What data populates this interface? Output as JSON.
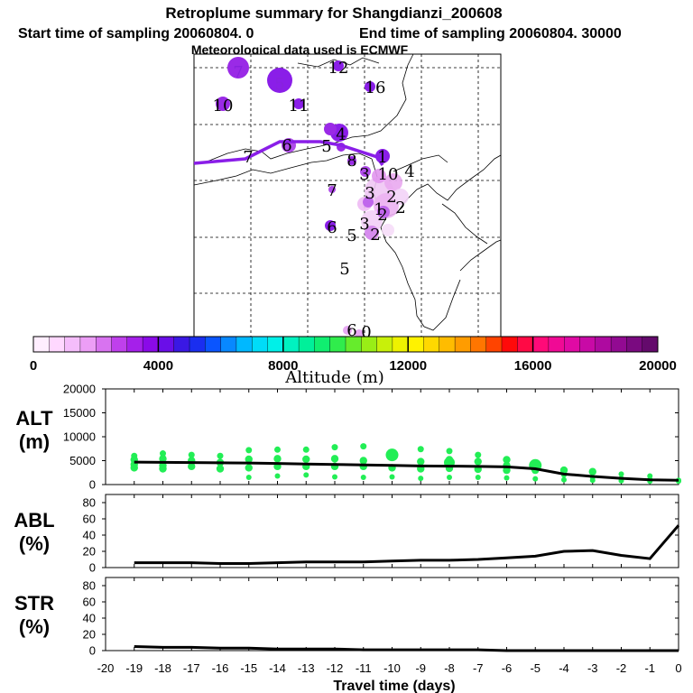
{
  "title": {
    "line1": "Retroplume summary for Shangdianzi_200608",
    "line2a": "Start time of sampling 20060804.    0",
    "line2b": "End time of sampling 20060804. 30000",
    "line3": "Meteorological data used is ECMWF"
  },
  "map": {
    "track_color": "#8a1ee8",
    "labels": [
      {
        "t": "7",
        "c": "#8822dd"
      },
      {
        "t": "5",
        "c": "#8822dd"
      },
      {
        "t": "12",
        "c": "#000000"
      },
      {
        "t": "16",
        "c": "#000000"
      },
      {
        "t": "10",
        "c": "#000000"
      },
      {
        "t": "11",
        "c": "#000000"
      },
      {
        "t": "7",
        "c": "#000000"
      },
      {
        "t": "6",
        "c": "#000000"
      },
      {
        "t": "5",
        "c": "#000000"
      },
      {
        "t": "4",
        "c": "#000000"
      },
      {
        "t": "8",
        "c": "#000000"
      },
      {
        "t": "1",
        "c": "#000000"
      },
      {
        "t": "3",
        "c": "#000000"
      },
      {
        "t": "10",
        "c": "#000000"
      },
      {
        "t": "4",
        "c": "#000000"
      },
      {
        "t": "3",
        "c": "#000000"
      },
      {
        "t": "2",
        "c": "#000000"
      },
      {
        "t": "1",
        "c": "#000000"
      },
      {
        "t": "2",
        "c": "#000000"
      },
      {
        "t": "7",
        "c": "#000000"
      },
      {
        "t": "6",
        "c": "#000000"
      },
      {
        "t": "5",
        "c": "#000000"
      },
      {
        "t": "3",
        "c": "#000000"
      },
      {
        "t": "2",
        "c": "#000000"
      },
      {
        "t": "2",
        "c": "#000000"
      },
      {
        "t": "5",
        "c": "#000000"
      },
      {
        "t": "6",
        "c": "#000000"
      },
      {
        "t": "0",
        "c": "#000000"
      }
    ]
  },
  "colorbar": {
    "title": "Altitude (m)",
    "ticks": [
      "0",
      "4000",
      "8000",
      "12000",
      "16000",
      "20000"
    ],
    "colors": [
      "#ffeeff",
      "#ffd8ff",
      "#f5bdfb",
      "#ec9ef6",
      "#d873f0",
      "#bf40ec",
      "#a520ea",
      "#8a0ae8",
      "#6a0ee8",
      "#3a18e4",
      "#1a2ef0",
      "#0a55ff",
      "#0888ff",
      "#00b8ff",
      "#00dcf8",
      "#00f0e8",
      "#00f2c0",
      "#00f09a",
      "#10ee70",
      "#30ec4c",
      "#66ec2c",
      "#99ee16",
      "#c8f00a",
      "#eef200",
      "#fff200",
      "#ffd800",
      "#ffbc00",
      "#ff9c00",
      "#ff7600",
      "#ff4400",
      "#ff0a0a",
      "#ff0a45",
      "#ff0a78",
      "#f00a95",
      "#e00aa4",
      "#c80aa6",
      "#ae0aa0",
      "#920a92",
      "#7a0a80",
      "#640a6c"
    ]
  },
  "chart_data": [
    {
      "type": "line",
      "name": "altitude",
      "ylabel": "ALT\n(m)",
      "ylabel_l1": "ALT",
      "ylabel_l2": "(m)",
      "ylim": [
        0,
        20000
      ],
      "yticks": [
        "0",
        "5000",
        "10000",
        "15000",
        "20000"
      ],
      "yticks_v": [
        0,
        5000,
        10000,
        15000,
        20000
      ],
      "x": [
        -19,
        -18,
        -17,
        -16,
        -15,
        -14,
        -13,
        -12,
        -11,
        -10,
        -9,
        -8,
        -7,
        -6,
        -5,
        -4,
        -3,
        -2,
        -1,
        0
      ],
      "values": [
        4700,
        4650,
        4600,
        4550,
        4500,
        4400,
        4300,
        4200,
        4100,
        4000,
        3900,
        3850,
        3800,
        3700,
        3300,
        2200,
        1700,
        1300,
        1000,
        900
      ],
      "scatter": {
        "color": "#22ee55",
        "points": [
          [
            -19,
            6000
          ],
          [
            -19,
            5200
          ],
          [
            -19,
            4200
          ],
          [
            -19,
            3500
          ],
          [
            -18,
            6500
          ],
          [
            -18,
            5400
          ],
          [
            -18,
            4000
          ],
          [
            -18,
            3300
          ],
          [
            -17,
            6200
          ],
          [
            -17,
            5000
          ],
          [
            -17,
            3800
          ],
          [
            -16,
            6000
          ],
          [
            -16,
            4600
          ],
          [
            -16,
            3300
          ],
          [
            -15,
            7200
          ],
          [
            -15,
            5300
          ],
          [
            -15,
            3500
          ],
          [
            -15,
            1500
          ],
          [
            -14,
            7300
          ],
          [
            -14,
            5400
          ],
          [
            -14,
            3800
          ],
          [
            -14,
            1800
          ],
          [
            -13,
            7300
          ],
          [
            -13,
            5300
          ],
          [
            -13,
            3800
          ],
          [
            -13,
            2000
          ],
          [
            -12,
            7800
          ],
          [
            -12,
            5400
          ],
          [
            -12,
            3800
          ],
          [
            -12,
            1600
          ],
          [
            -11,
            8000
          ],
          [
            -11,
            5000
          ],
          [
            -11,
            3800
          ],
          [
            -11,
            1500
          ],
          [
            -10,
            6200
          ],
          [
            -10,
            3500
          ],
          [
            -10,
            1600
          ],
          [
            -9,
            7400
          ],
          [
            -9,
            4800
          ],
          [
            -9,
            3300
          ],
          [
            -9,
            1300
          ],
          [
            -8,
            7000
          ],
          [
            -8,
            5200
          ],
          [
            -8,
            4600
          ],
          [
            -8,
            3400
          ],
          [
            -8,
            1500
          ],
          [
            -7,
            6200
          ],
          [
            -7,
            4800
          ],
          [
            -7,
            3200
          ],
          [
            -7,
            1500
          ],
          [
            -6,
            5200
          ],
          [
            -6,
            4000
          ],
          [
            -6,
            3000
          ],
          [
            -6,
            1400
          ],
          [
            -5,
            4000
          ],
          [
            -5,
            3000
          ],
          [
            -5,
            1200
          ],
          [
            -4,
            3000
          ],
          [
            -4,
            2000
          ],
          [
            -4,
            1000
          ],
          [
            -3,
            2700
          ],
          [
            -3,
            1500
          ],
          [
            -3,
            900
          ],
          [
            -2,
            2200
          ],
          [
            -2,
            1300
          ],
          [
            -2,
            800
          ],
          [
            -1,
            1800
          ],
          [
            -1,
            1100
          ],
          [
            -1,
            700
          ],
          [
            0,
            900
          ],
          [
            0,
            700
          ]
        ]
      }
    },
    {
      "type": "line",
      "name": "abl",
      "ylabel_l1": "ABL",
      "ylabel_l2": "(%)",
      "ylim": [
        0,
        90
      ],
      "yticks": [
        "0",
        "20",
        "40",
        "60",
        "80"
      ],
      "yticks_v": [
        0,
        20,
        40,
        60,
        80
      ],
      "x": [
        -19,
        -18,
        -17,
        -16,
        -15,
        -14,
        -13,
        -12,
        -11,
        -10,
        -9,
        -8,
        -7,
        -6,
        -5,
        -4,
        -3,
        -2,
        -1,
        0
      ],
      "values": [
        6,
        6,
        6,
        5,
        5,
        6,
        7,
        7,
        7,
        8,
        9,
        9,
        10,
        12,
        14,
        20,
        21,
        15,
        11,
        52
      ]
    },
    {
      "type": "line",
      "name": "str",
      "ylabel_l1": "STR",
      "ylabel_l2": "(%)",
      "ylim": [
        0,
        90
      ],
      "yticks": [
        "0",
        "20",
        "40",
        "60",
        "80"
      ],
      "yticks_v": [
        0,
        20,
        40,
        60,
        80
      ],
      "x": [
        -19,
        -18,
        -17,
        -16,
        -15,
        -14,
        -13,
        -12,
        -11,
        -10,
        -9,
        -8,
        -7,
        -6,
        -5,
        -4,
        -3,
        -2,
        -1,
        0
      ],
      "values": [
        5,
        4,
        4,
        3,
        3,
        2,
        2,
        2,
        1,
        1,
        1,
        1,
        1,
        0,
        0,
        0,
        0,
        0,
        0,
        0
      ]
    }
  ],
  "xaxis": {
    "label": "Travel time (days)",
    "ticks": [
      "-20",
      "-19",
      "-18",
      "-17",
      "-16",
      "-15",
      "-14",
      "-13",
      "-12",
      "-11",
      "-10",
      "-9",
      "-8",
      "-7",
      "-6",
      "-5",
      "-4",
      "-3",
      "-2",
      "-1",
      "0"
    ]
  }
}
